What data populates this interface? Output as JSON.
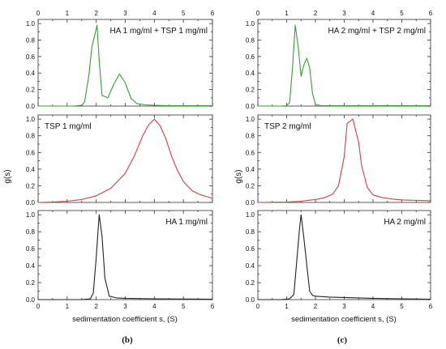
{
  "figure": {
    "left_column_caption": "(b)",
    "right_column_caption": "(c)",
    "xlabel": "sedimentation coefficient s, (S)",
    "ylabel": "g(s)"
  },
  "chart_data": [
    {
      "type": "line",
      "column": "b",
      "row": 0,
      "label": "HA 1 mg/ml + TSP 1 mg/ml",
      "color": "#3a9a3a",
      "xlim": [
        0,
        6
      ],
      "ylim": [
        0,
        1.05
      ],
      "xticks": [
        0,
        1,
        2,
        3,
        4,
        5,
        6
      ],
      "yticks": [
        0.0,
        0.2,
        0.4,
        0.6,
        0.8,
        1.0
      ],
      "x": [
        0.0,
        1.2,
        1.5,
        1.6,
        1.75,
        1.85,
        1.95,
        2.03,
        2.1,
        2.2,
        2.4,
        2.6,
        2.8,
        3.0,
        3.2,
        3.4,
        3.7,
        4.0,
        4.5,
        5.0,
        6.0
      ],
      "y": [
        0.0,
        0.0,
        0.01,
        0.05,
        0.38,
        0.72,
        0.86,
        0.98,
        0.55,
        0.13,
        0.1,
        0.26,
        0.39,
        0.28,
        0.09,
        0.03,
        0.015,
        0.01,
        0.005,
        0.005,
        0.005
      ]
    },
    {
      "type": "line",
      "column": "b",
      "row": 1,
      "label": "TSP 1 mg/ml",
      "color": "#d24040",
      "xlim": [
        0,
        6
      ],
      "ylim": [
        0,
        1.05
      ],
      "xticks": [
        0,
        1,
        2,
        3,
        4,
        5,
        6
      ],
      "yticks": [
        0.0,
        0.2,
        0.4,
        0.6,
        0.8,
        1.0
      ],
      "x": [
        0.0,
        0.5,
        1.0,
        1.5,
        2.0,
        2.5,
        3.0,
        3.3,
        3.6,
        3.8,
        4.0,
        4.2,
        4.4,
        4.6,
        4.8,
        5.0,
        5.3,
        5.6,
        6.0
      ],
      "y": [
        0.0,
        0.005,
        0.015,
        0.035,
        0.08,
        0.17,
        0.35,
        0.55,
        0.8,
        0.93,
        1.0,
        0.92,
        0.76,
        0.55,
        0.38,
        0.25,
        0.14,
        0.09,
        0.05
      ]
    },
    {
      "type": "line",
      "column": "b",
      "row": 2,
      "label": "HA 1 mg/ml",
      "color": "#222222",
      "xlim": [
        0,
        6
      ],
      "ylim": [
        0,
        1.05
      ],
      "xticks": [
        0,
        1,
        2,
        3,
        4,
        5,
        6
      ],
      "yticks": [
        0.0,
        0.2,
        0.4,
        0.6,
        0.8,
        1.0
      ],
      "x": [
        0.0,
        1.5,
        1.8,
        1.9,
        2.0,
        2.1,
        2.2,
        2.3,
        2.45,
        2.7,
        3.0,
        4.0,
        6.0
      ],
      "y": [
        0.0,
        0.0,
        0.01,
        0.08,
        0.5,
        1.0,
        0.75,
        0.25,
        0.04,
        0.02,
        0.015,
        0.01,
        0.005
      ]
    },
    {
      "type": "line",
      "column": "c",
      "row": 0,
      "label": "HA 2 mg/ml + TSP 2 mg/ml",
      "color": "#3a9a3a",
      "xlim": [
        0,
        6
      ],
      "ylim": [
        0,
        1.05
      ],
      "xticks": [
        0,
        1,
        2,
        3,
        4,
        5,
        6
      ],
      "yticks": [
        0.0,
        0.2,
        0.4,
        0.6,
        0.8,
        1.0
      ],
      "x": [
        0.0,
        0.8,
        1.0,
        1.1,
        1.2,
        1.3,
        1.4,
        1.5,
        1.6,
        1.7,
        1.8,
        1.9,
        2.0,
        2.2,
        2.5,
        3.0,
        4.0,
        6.0
      ],
      "y": [
        0.0,
        0.0,
        0.005,
        0.04,
        0.45,
        0.98,
        0.72,
        0.36,
        0.5,
        0.58,
        0.46,
        0.15,
        0.02,
        0.005,
        0.005,
        0.005,
        0.005,
        0.005
      ]
    },
    {
      "type": "line",
      "column": "c",
      "row": 1,
      "label": "TSP 2 mg/ml",
      "color": "#d24040",
      "xlim": [
        0,
        6
      ],
      "ylim": [
        0,
        1.05
      ],
      "xticks": [
        0,
        1,
        2,
        3,
        4,
        5,
        6
      ],
      "yticks": [
        0.0,
        0.2,
        0.4,
        0.6,
        0.8,
        1.0
      ],
      "x": [
        0.0,
        1.0,
        1.5,
        2.0,
        2.3,
        2.6,
        2.8,
        3.0,
        3.1,
        3.3,
        3.5,
        3.6,
        3.8,
        4.0,
        4.3,
        4.7,
        5.0,
        5.5,
        6.0
      ],
      "y": [
        0.0,
        0.005,
        0.015,
        0.035,
        0.055,
        0.1,
        0.2,
        0.55,
        0.95,
        1.0,
        0.72,
        0.45,
        0.18,
        0.09,
        0.06,
        0.04,
        0.03,
        0.025,
        0.02
      ]
    },
    {
      "type": "line",
      "column": "c",
      "row": 2,
      "label": "HA 2 mg/ml",
      "color": "#222222",
      "xlim": [
        0,
        6
      ],
      "ylim": [
        0,
        1.05
      ],
      "xticks": [
        0,
        1,
        2,
        3,
        4,
        5,
        6
      ],
      "yticks": [
        0.0,
        0.2,
        0.4,
        0.6,
        0.8,
        1.0
      ],
      "x": [
        0.0,
        0.8,
        1.1,
        1.25,
        1.35,
        1.45,
        1.5,
        1.6,
        1.7,
        1.8,
        1.9,
        2.0,
        2.5,
        3.0,
        4.0,
        5.0,
        6.0
      ],
      "y": [
        0.0,
        0.0,
        0.01,
        0.06,
        0.45,
        0.85,
        1.0,
        0.72,
        0.4,
        0.1,
        0.05,
        0.04,
        0.03,
        0.025,
        0.015,
        0.01,
        0.005
      ]
    }
  ]
}
